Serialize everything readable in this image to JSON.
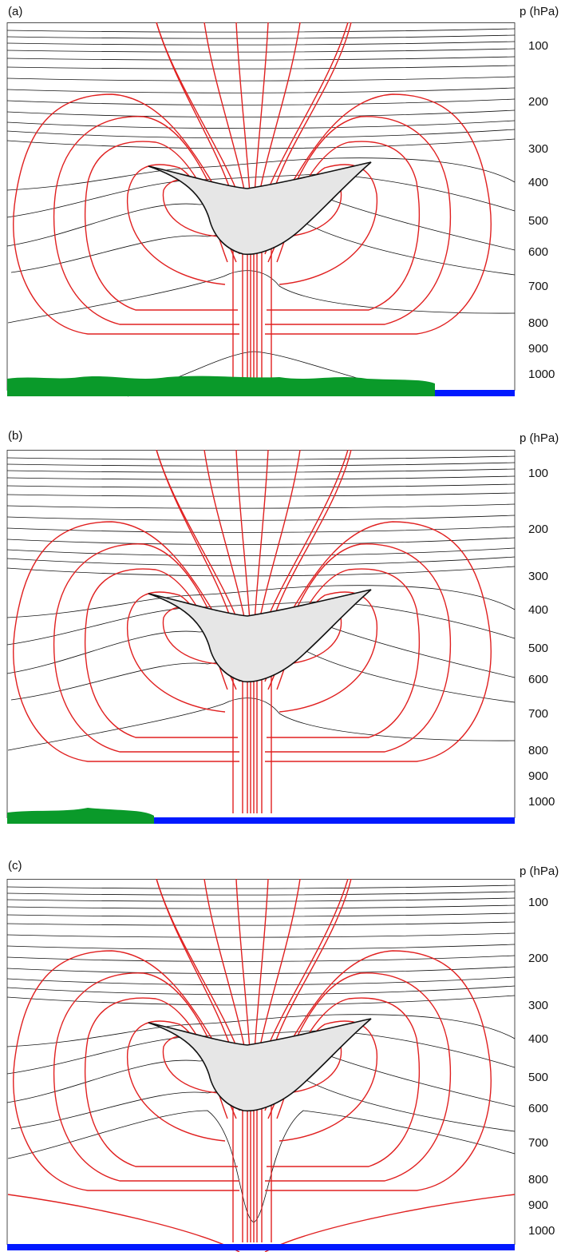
{
  "panels": [
    {
      "label": "(a)",
      "axis_title": "p (hPa)",
      "ticks": [
        "100",
        "200",
        "300",
        "400",
        "500",
        "600",
        "700",
        "800",
        "900",
        "1000"
      ],
      "surface": "land-left-ocean-right"
    },
    {
      "label": "(b)",
      "axis_title": "p (hPa)",
      "ticks": [
        "100",
        "200",
        "300",
        "400",
        "500",
        "600",
        "700",
        "800",
        "900",
        "1000"
      ],
      "surface": "coast-left-ocean"
    },
    {
      "label": "(c)",
      "axis_title": "p (hPa)",
      "ticks": [
        "100",
        "200",
        "300",
        "400",
        "500",
        "600",
        "700",
        "800",
        "900",
        "1000"
      ],
      "surface": "ocean"
    }
  ],
  "colors": {
    "streamline": "#e02020",
    "isentrope": "#111111",
    "anvil_fill": "#e6e6e6",
    "land": "#0a9a2a",
    "ocean": "#0019ff"
  }
}
